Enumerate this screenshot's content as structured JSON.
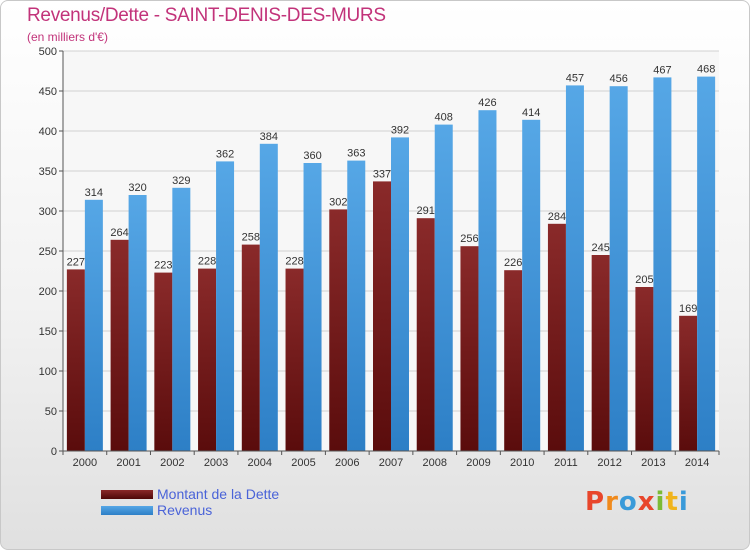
{
  "header": {
    "title": "Revenus/Dette - SAINT-DENIS-DES-MURS",
    "subtitle": "(en milliers d'€)"
  },
  "colors": {
    "dette": "#6b1818",
    "dette_light": "#8a2a2a",
    "revenus": "#3b8fd6",
    "revenus_light": "#56a7e6",
    "grid": "#d0d0d0",
    "title": "#c2337a",
    "legend_text": "#4a63d8"
  },
  "legend": {
    "items": [
      {
        "label": "Montant de la Dette",
        "color": "#6b1818"
      },
      {
        "label": "Revenus",
        "color": "#3b8fd6"
      }
    ]
  },
  "logo": {
    "text": "Proxiti",
    "letter_colors": [
      "#e8462b",
      "#f08a1c",
      "#3a9ad9",
      "#e8462b",
      "#7cbb35",
      "#f0b41c",
      "#3a9ad9"
    ]
  },
  "chart_data": {
    "type": "bar",
    "title": "Revenus/Dette - SAINT-DENIS-DES-MURS",
    "subtitle": "(en milliers d'€)",
    "categories": [
      "2000",
      "2001",
      "2002",
      "2003",
      "2004",
      "2005",
      "2006",
      "2007",
      "2008",
      "2009",
      "2010",
      "2011",
      "2012",
      "2013",
      "2014"
    ],
    "series": [
      {
        "name": "Montant de la Dette",
        "values": [
          227,
          264,
          223,
          228,
          258,
          228,
          302,
          337,
          291,
          256,
          226,
          284,
          245,
          205,
          169
        ]
      },
      {
        "name": "Revenus",
        "values": [
          314,
          320,
          329,
          362,
          384,
          360,
          363,
          392,
          408,
          426,
          414,
          457,
          456,
          467,
          468
        ]
      }
    ],
    "value_labels": {
      "Montant de la Dette": [
        "227",
        "264",
        "223",
        "228",
        "258",
        "228",
        "302",
        "337",
        "291",
        "256",
        "226",
        "284",
        "245",
        "205",
        "169"
      ],
      "Revenus": [
        "314",
        "320",
        "329",
        "362",
        "384",
        "360",
        "363",
        "392",
        "408",
        "426",
        "414",
        "457",
        "456",
        "467",
        "468"
      ]
    },
    "ylim": [
      0,
      500
    ],
    "yticks": [
      0,
      50,
      100,
      150,
      200,
      250,
      300,
      350,
      400,
      450,
      500
    ],
    "ytick_labels": [
      "0",
      "50",
      "100",
      "150",
      "200",
      "250",
      "300",
      "350",
      "400",
      "450",
      "500"
    ],
    "grid": true,
    "legend_position": "bottom-left",
    "xlabel": "",
    "ylabel": ""
  }
}
